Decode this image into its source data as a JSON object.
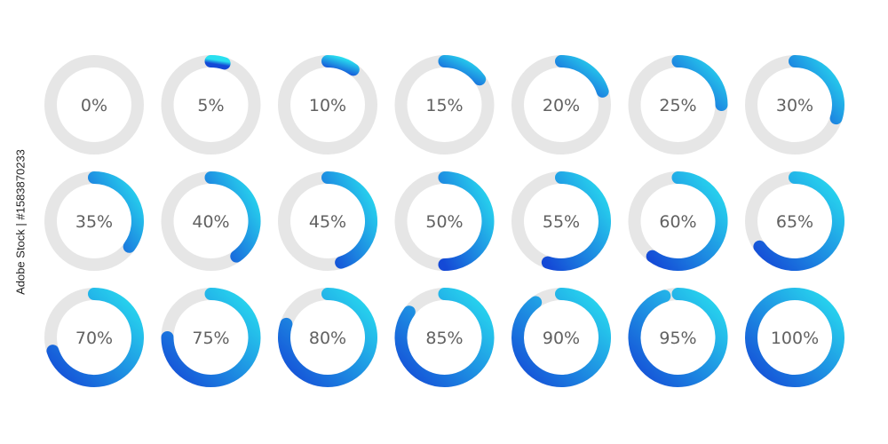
{
  "watermark_text": "Adobe Stock | #1583870233",
  "colors": {
    "track": "#e6e6e6",
    "arc_start": "#29e0f0",
    "arc_end": "#1449d6",
    "label": "#616161"
  },
  "gauges": [
    {
      "value": 0,
      "label": "0%"
    },
    {
      "value": 5,
      "label": "5%"
    },
    {
      "value": 10,
      "label": "10%"
    },
    {
      "value": 15,
      "label": "15%"
    },
    {
      "value": 20,
      "label": "20%"
    },
    {
      "value": 25,
      "label": "25%"
    },
    {
      "value": 30,
      "label": "30%"
    },
    {
      "value": 35,
      "label": "35%"
    },
    {
      "value": 40,
      "label": "40%"
    },
    {
      "value": 45,
      "label": "45%"
    },
    {
      "value": 50,
      "label": "50%"
    },
    {
      "value": 55,
      "label": "55%"
    },
    {
      "value": 60,
      "label": "60%"
    },
    {
      "value": 65,
      "label": "65%"
    },
    {
      "value": 70,
      "label": "70%"
    },
    {
      "value": 75,
      "label": "75%"
    },
    {
      "value": 80,
      "label": "80%"
    },
    {
      "value": 85,
      "label": "85%"
    },
    {
      "value": 90,
      "label": "90%"
    },
    {
      "value": 95,
      "label": "95%"
    },
    {
      "value": 100,
      "label": "100%"
    }
  ]
}
